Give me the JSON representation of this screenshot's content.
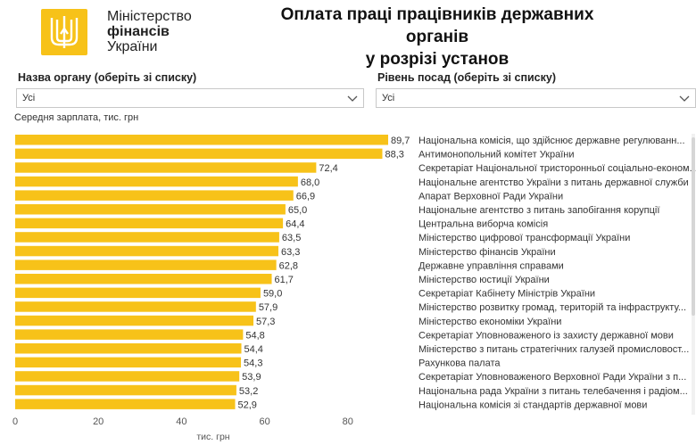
{
  "logo": {
    "line1": "Міністерство",
    "line2": "фінансів",
    "line3": "України",
    "brand_color": "#f7c219"
  },
  "title": {
    "line1": "Оплата праці працівників державних органів",
    "line2": "у розрізі установ"
  },
  "filters": {
    "organ": {
      "label": "Назва органу (оберіть зі списку)",
      "value": "Усі"
    },
    "level": {
      "label": "Рівень посад (оберіть зі списку)",
      "value": "Усі"
    }
  },
  "chart_subtitle": "Середня зарплата, тис. грн",
  "chart_data": {
    "type": "bar",
    "orientation": "horizontal",
    "title": "Середня зарплата, тис. грн",
    "xlabel": "тис. грн",
    "ylabel": "",
    "xlim": [
      0,
      95
    ],
    "xticks": [
      0,
      20,
      40,
      60,
      80
    ],
    "bar_color": "#f7c219",
    "categories": [
      "Національна комісія, що здійснює державне регулюванн...",
      "Антимонопольний комітет України",
      "Секретаріат Національної тристоронньої соціально-економ...",
      "Національне агентство України з питань державної служби",
      "Апарат Верховної Ради України",
      "Національне агентство з питань запобігання корупції",
      "Центральна виборча комісія",
      "Міністерство цифрової трансформації України",
      "Міністерство фінансів України",
      "Державне управління справами",
      "Міністерство юстиції України",
      "Секретаріат Кабінету Міністрів України",
      "Міністерство розвитку громад, територій та інфраструкту...",
      "Міністерство економіки України",
      "Секретаріат Уповноваженого із захисту державної мови",
      "Міністерство з питань стратегічних галузей промисловост...",
      "Рахункова палата",
      "Секретаріат Уповноваженого Верховної Ради України з п...",
      "Національна рада України з питань телебачення і радіом...",
      "Національна комісія зі стандартів державної мови"
    ],
    "values": [
      89.7,
      88.3,
      72.4,
      68.0,
      66.9,
      65.0,
      64.4,
      63.5,
      63.3,
      62.8,
      61.7,
      59.0,
      57.9,
      57.3,
      54.8,
      54.4,
      54.3,
      53.9,
      53.2,
      52.9
    ],
    "value_labels": [
      "89,7",
      "88,3",
      "72,4",
      "68,0",
      "66,9",
      "65,0",
      "64,4",
      "63,5",
      "63,3",
      "62,8",
      "61,7",
      "59,0",
      "57,9",
      "57,3",
      "54,8",
      "54,4",
      "54,3",
      "53,9",
      "53,2",
      "52,9"
    ]
  }
}
